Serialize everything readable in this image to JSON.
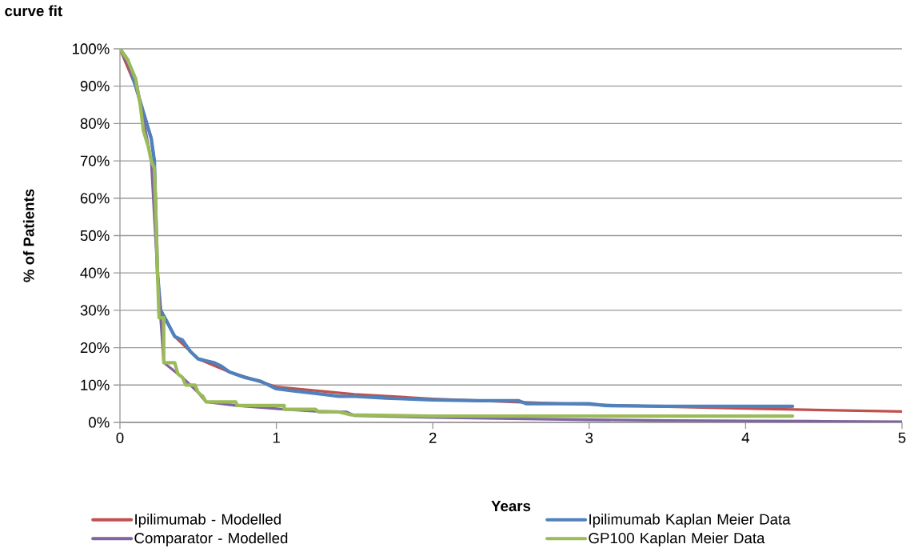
{
  "chart_data": {
    "type": "line",
    "title": "curve fit",
    "xlabel": "Years",
    "ylabel": "% of Patients",
    "xlim": [
      0,
      5
    ],
    "xticks": [
      0,
      1,
      2,
      3,
      4,
      5
    ],
    "ylim": [
      0,
      100
    ],
    "yticks": [
      {
        "value": 0,
        "label": "0%"
      },
      {
        "value": 10,
        "label": "10%"
      },
      {
        "value": 20,
        "label": "20%"
      },
      {
        "value": 30,
        "label": "30%"
      },
      {
        "value": 40,
        "label": "40%"
      },
      {
        "value": 50,
        "label": "50%"
      },
      {
        "value": 60,
        "label": "60%"
      },
      {
        "value": 70,
        "label": "70%"
      },
      {
        "value": 80,
        "label": "80%"
      },
      {
        "value": 90,
        "label": "90%"
      },
      {
        "value": 100,
        "label": "100%"
      }
    ],
    "grid": "y",
    "legend": "bottom",
    "marker": "none",
    "line_style": "solid",
    "series": [
      {
        "name": "Ipilimumab - Modelled",
        "color": "#c0504d",
        "x": [
          0,
          0.1,
          0.2,
          0.22,
          0.24,
          0.26,
          0.35,
          0.5,
          0.7,
          1.0,
          1.5,
          2,
          2.5,
          3,
          3.5,
          4,
          4.5,
          5
        ],
        "values": [
          100,
          90,
          76,
          70,
          40,
          30,
          23,
          17,
          13.5,
          9.5,
          7.5,
          6.3,
          5.5,
          4.8,
          4.2,
          3.7,
          3.3,
          2.9
        ]
      },
      {
        "name": "Ipilimumab Kaplan Meier Data",
        "color": "#4f81bd",
        "x": [
          0,
          0.05,
          0.1,
          0.15,
          0.2,
          0.22,
          0.24,
          0.26,
          0.3,
          0.35,
          0.4,
          0.45,
          0.5,
          0.55,
          0.6,
          0.65,
          0.7,
          0.8,
          0.9,
          1.0,
          1.1,
          1.2,
          1.3,
          1.4,
          1.5,
          1.7,
          2.0,
          2.3,
          2.55,
          2.6,
          3.0,
          3.1,
          3.5,
          4.0,
          4.3
        ],
        "values": [
          100,
          97,
          90,
          83,
          76,
          70,
          40,
          30,
          27,
          23,
          22,
          19,
          17,
          16.5,
          16,
          15,
          13.5,
          12,
          11,
          9,
          8.5,
          8,
          7.5,
          7,
          7,
          6.5,
          6,
          5.8,
          5.8,
          5,
          5,
          4.5,
          4.3,
          4.3,
          4.3
        ]
      },
      {
        "name": "Comparator - Modelled",
        "color": "#8064a2",
        "x": [
          0,
          0.1,
          0.2,
          0.24,
          0.28,
          0.4,
          0.5,
          0.55,
          0.75,
          1.05,
          1.25,
          1.45,
          1.5,
          2,
          2.5,
          3,
          3.5,
          4,
          4.5,
          5
        ],
        "values": [
          100,
          92,
          70,
          40,
          16,
          12,
          8,
          5.5,
          4.5,
          3.5,
          3,
          2.8,
          1.8,
          1.3,
          1,
          0.7,
          0.5,
          0.4,
          0.3,
          0.2
        ]
      },
      {
        "name": "GP100 Kaplan Meier Data",
        "color": "#9bbb59",
        "x": [
          0,
          0.05,
          0.1,
          0.13,
          0.15,
          0.18,
          0.2,
          0.22,
          0.23,
          0.24,
          0.25,
          0.28,
          0.28,
          0.35,
          0.37,
          0.4,
          0.42,
          0.48,
          0.5,
          0.53,
          0.55,
          0.74,
          0.75,
          1.05,
          1.05,
          1.25,
          1.27,
          1.4,
          1.48,
          2,
          4.3
        ],
        "values": [
          100,
          97,
          92,
          85,
          78,
          74,
          70,
          68,
          55,
          40,
          28,
          28,
          16,
          16,
          13,
          12,
          10,
          10,
          8,
          7,
          5.5,
          5.5,
          4.5,
          4.5,
          3.5,
          3.5,
          2.8,
          2.8,
          2,
          1.7,
          1.7
        ]
      }
    ]
  }
}
